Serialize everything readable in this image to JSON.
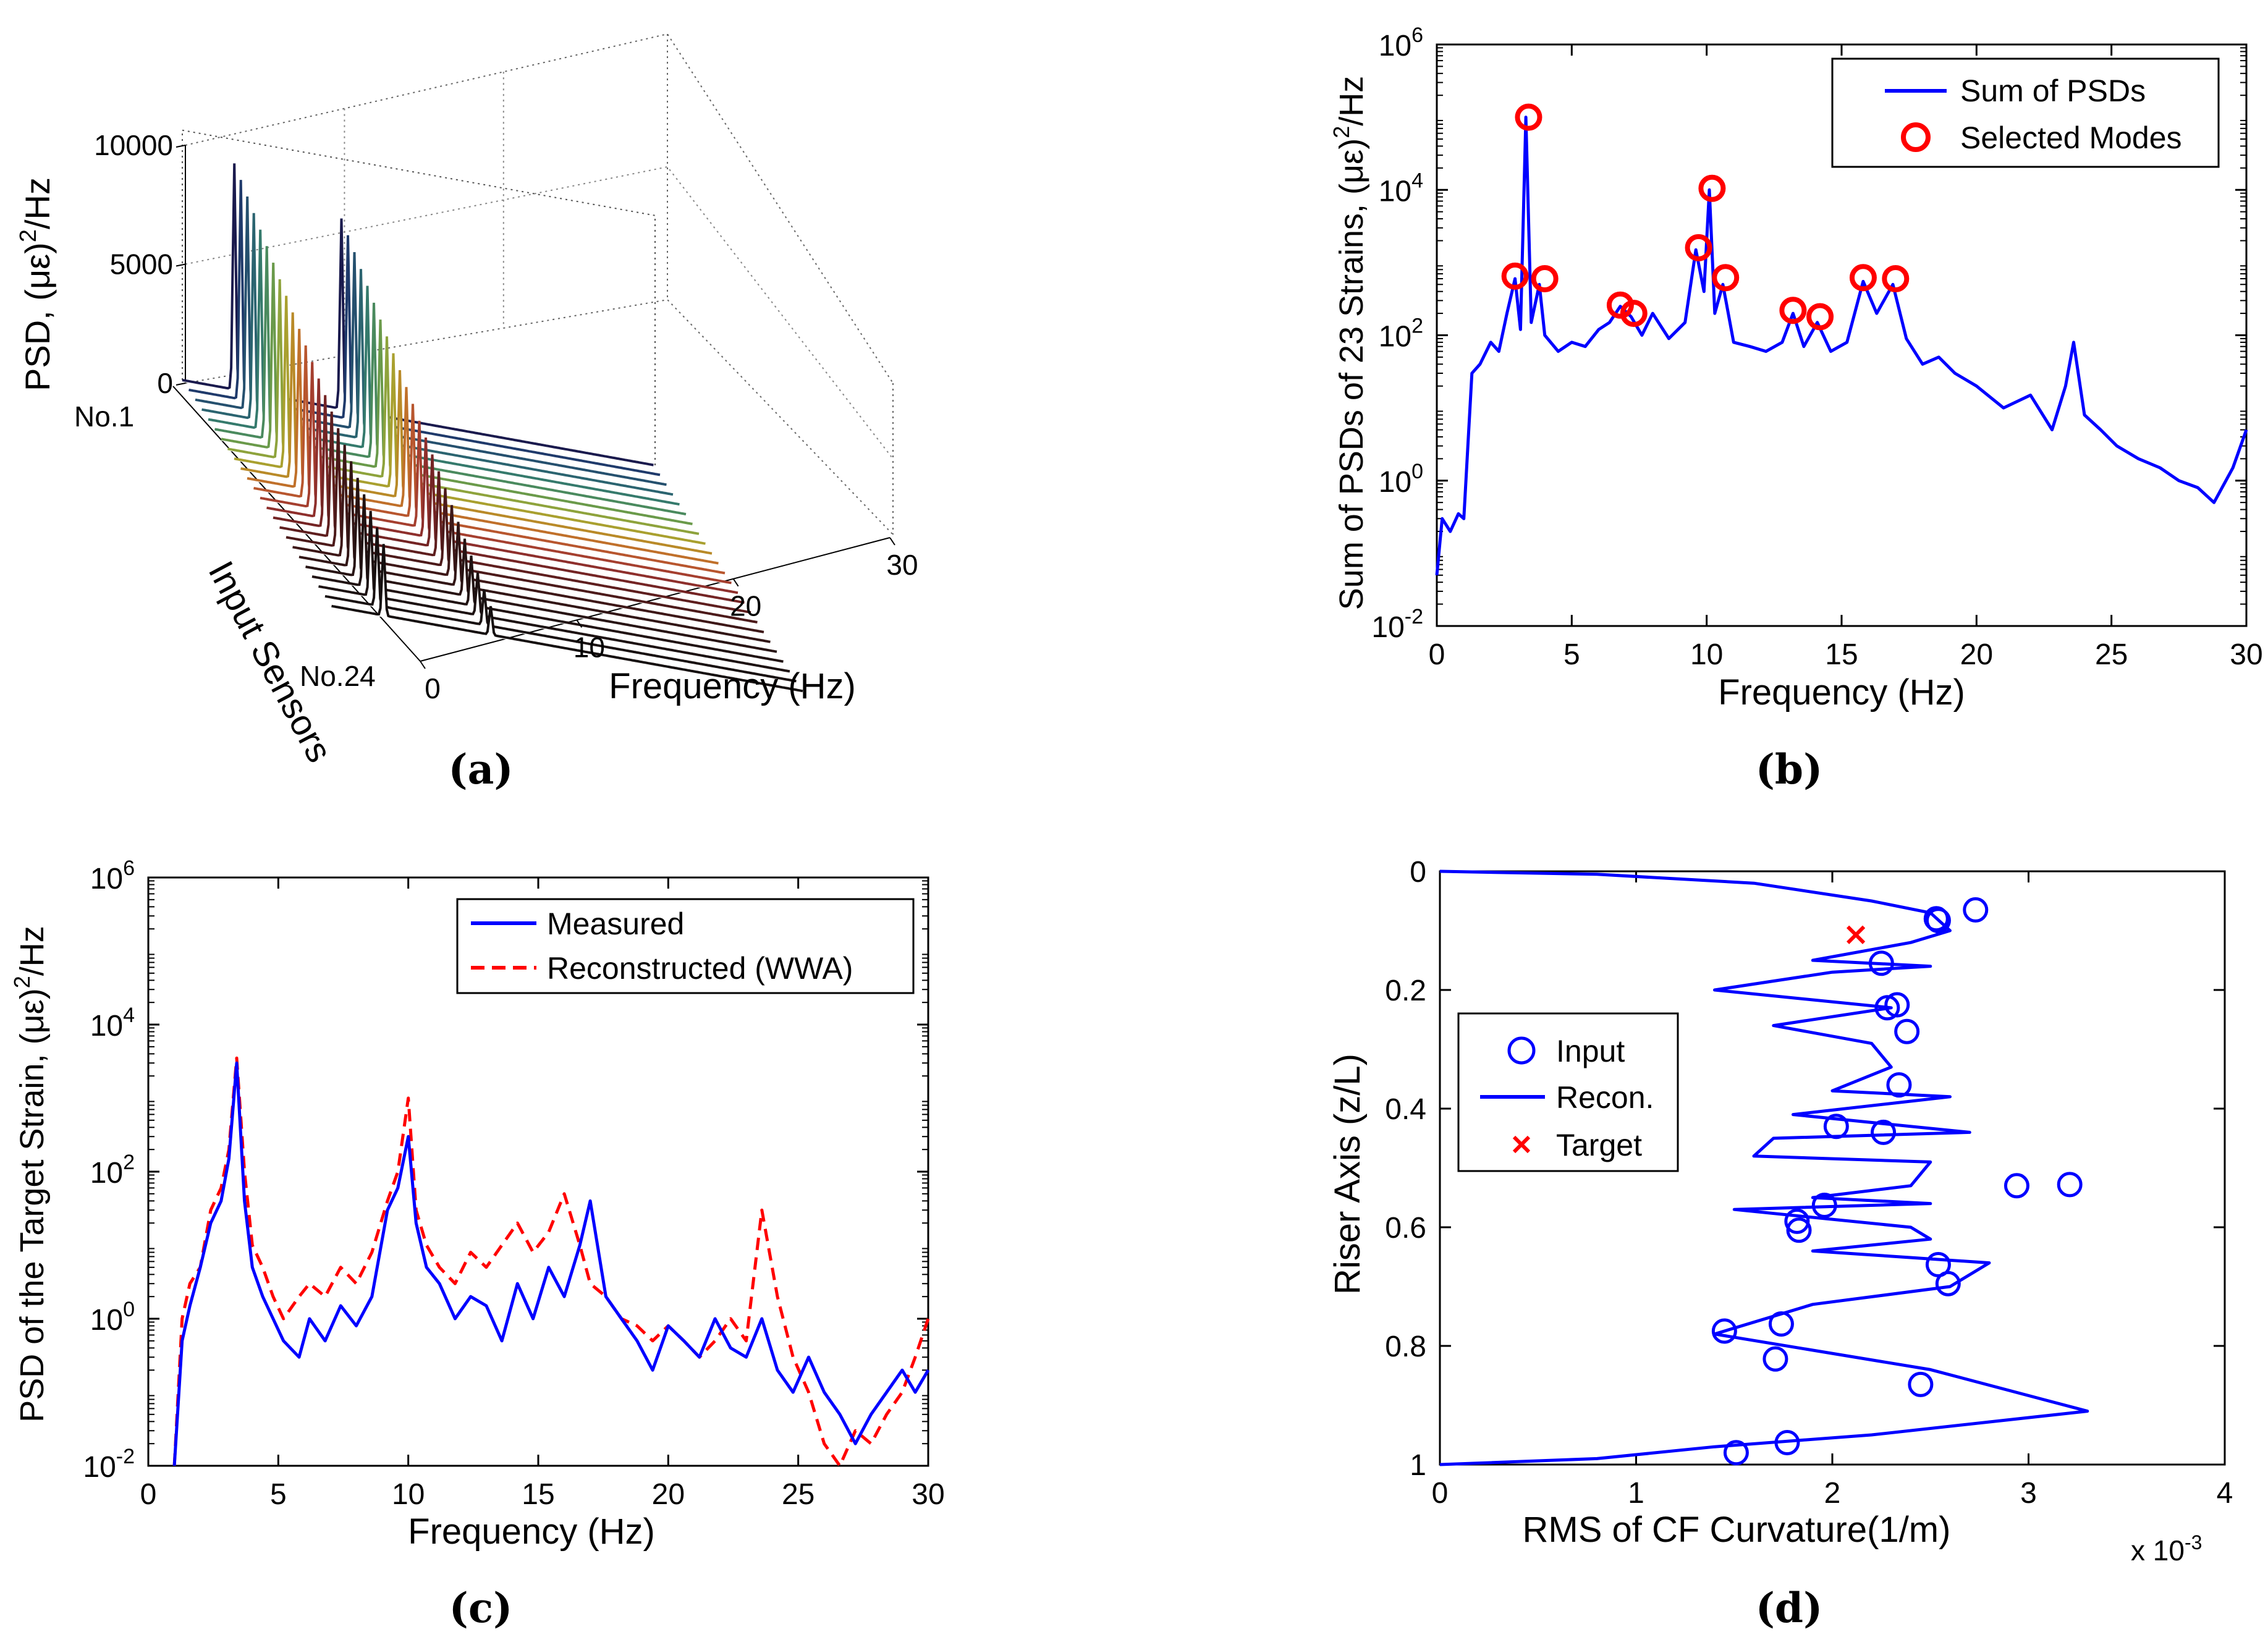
{
  "chart_data": [
    {
      "panel": "a",
      "caption": "(a)",
      "type": "area",
      "title": "",
      "xlabel": "Frequency (Hz)",
      "ylabel": "Input Sensors",
      "zlabel": "PSD, (με)²/Hz",
      "zlabel_base": "PSD, (με)",
      "zlabel_exp": "2",
      "zlabel_tail": "/Hz",
      "xlim": [
        0,
        30
      ],
      "zlim": [
        0,
        10000
      ],
      "x_ticks": [
        "0",
        "10",
        "20",
        "30"
      ],
      "z_ticks": [
        "0",
        "5000",
        "10000"
      ],
      "sensor_labels": [
        "No.1",
        "No.24"
      ],
      "n_sensors": 24,
      "peak_freqs_hz": [
        3.3,
        10.1
      ],
      "peak_heights_first": [
        9500,
        8000
      ],
      "peak_heights_last": [
        3000,
        1200
      ]
    },
    {
      "panel": "b",
      "caption": "(b)",
      "type": "line",
      "xlabel": "Frequency (Hz)",
      "ylabel": "Sum of PSDs of 23 Strains, (με)²/Hz",
      "ylabel_base": "Sum of PSDs of 23 Strains, (με)",
      "ylabel_exp": "2",
      "ylabel_tail": "/Hz",
      "yscale": "log",
      "xlim": [
        0,
        30
      ],
      "ylim": [
        0.01,
        1000000
      ],
      "x_ticks": [
        "0",
        "5",
        "10",
        "15",
        "20",
        "25",
        "30"
      ],
      "y_ticks": [
        {
          "base": "10",
          "exp": "-2"
        },
        {
          "base": "10",
          "exp": "0"
        },
        {
          "base": "10",
          "exp": "2"
        },
        {
          "base": "10",
          "exp": "4"
        },
        {
          "base": "10",
          "exp": "6"
        }
      ],
      "legend": [
        "Sum of PSDs",
        "Selected Modes"
      ],
      "legend_position": "top-right",
      "series": [
        {
          "name": "Sum of PSDs",
          "color": "#0000ff",
          "x": [
            0,
            0.2,
            0.5,
            0.8,
            1.0,
            1.3,
            1.6,
            2.0,
            2.3,
            2.6,
            2.9,
            3.1,
            3.3,
            3.5,
            3.8,
            4.0,
            4.5,
            5.0,
            5.5,
            6.0,
            6.4,
            6.8,
            7.2,
            7.6,
            8.0,
            8.6,
            9.2,
            9.6,
            9.9,
            10.1,
            10.3,
            10.6,
            11.0,
            11.6,
            12.2,
            12.8,
            13.2,
            13.6,
            14.1,
            14.6,
            15.2,
            15.8,
            16.3,
            16.9,
            17.4,
            18.0,
            18.6,
            19.2,
            20.0,
            21.0,
            22.0,
            22.8,
            23.3,
            23.6,
            24.0,
            24.6,
            25.2,
            26.0,
            26.8,
            27.5,
            28.2,
            28.8,
            29.5,
            30.0
          ],
          "values": [
            0.05,
            0.3,
            0.2,
            0.35,
            0.3,
            30,
            40,
            80,
            60,
            200,
            600,
            120,
            100000,
            150,
            500,
            100,
            60,
            80,
            70,
            120,
            150,
            250,
            180,
            100,
            200,
            90,
            150,
            1500,
            400,
            10000,
            200,
            500,
            80,
            70,
            60,
            80,
            200,
            70,
            150,
            60,
            80,
            550,
            200,
            500,
            90,
            40,
            50,
            30,
            20,
            10,
            15,
            5,
            20,
            80,
            8,
            5,
            3,
            2,
            1.5,
            1,
            0.8,
            0.5,
            1.5,
            5
          ]
        },
        {
          "name": "Selected Modes",
          "color": "#ff0000",
          "x": [
            2.9,
            3.4,
            4.0,
            6.8,
            7.3,
            9.7,
            10.2,
            10.7,
            13.2,
            14.2,
            15.8,
            17.0
          ],
          "values": [
            650,
            100000,
            600,
            260,
            200,
            1600,
            10500,
            620,
            220,
            180,
            620,
            600
          ]
        }
      ]
    },
    {
      "panel": "c",
      "caption": "(c)",
      "type": "line",
      "xlabel": "Frequency (Hz)",
      "ylabel": "PSD of the Target Strain, (με)²/Hz",
      "ylabel_base": "PSD of the Target Strain, (με)",
      "ylabel_exp": "2",
      "ylabel_tail": "/Hz",
      "yscale": "log",
      "xlim": [
        0,
        30
      ],
      "ylim": [
        0.01,
        1000000
      ],
      "x_ticks": [
        "0",
        "5",
        "10",
        "15",
        "20",
        "25",
        "30"
      ],
      "y_ticks": [
        {
          "base": "10",
          "exp": "-2"
        },
        {
          "base": "10",
          "exp": "0"
        },
        {
          "base": "10",
          "exp": "2"
        },
        {
          "base": "10",
          "exp": "4"
        },
        {
          "base": "10",
          "exp": "6"
        }
      ],
      "legend": [
        "Measured",
        "Reconstructed (WWA)"
      ],
      "legend_position": "top-right",
      "series": [
        {
          "name": "Measured",
          "color": "#0000ff",
          "style": "solid",
          "x": [
            1.0,
            1.3,
            1.6,
            2.0,
            2.4,
            2.8,
            3.1,
            3.4,
            3.7,
            4.0,
            4.4,
            4.8,
            5.2,
            5.8,
            6.2,
            6.8,
            7.4,
            8.0,
            8.6,
            9.2,
            9.6,
            10.0,
            10.3,
            10.7,
            11.2,
            11.8,
            12.4,
            13.0,
            13.6,
            14.2,
            14.8,
            15.4,
            16.0,
            16.6,
            17.0,
            17.6,
            18.2,
            18.8,
            19.4,
            20.0,
            20.6,
            21.2,
            21.8,
            22.4,
            23.0,
            23.6,
            24.2,
            24.8,
            25.4,
            26.0,
            26.6,
            27.2,
            27.8,
            28.4,
            29.0,
            29.5,
            30.0
          ],
          "values": [
            0.01,
            0.5,
            1.5,
            5,
            20,
            40,
            150,
            3000,
            40,
            5,
            2,
            1,
            0.5,
            0.3,
            1,
            0.5,
            1.5,
            0.8,
            2,
            30,
            60,
            300,
            20,
            5,
            3,
            1,
            2,
            1.5,
            0.5,
            3,
            1,
            5,
            2,
            10,
            40,
            2,
            1,
            0.5,
            0.2,
            0.8,
            0.5,
            0.3,
            1,
            0.4,
            0.3,
            1,
            0.2,
            0.1,
            0.3,
            0.1,
            0.05,
            0.02,
            0.05,
            0.1,
            0.2,
            0.1,
            0.2
          ]
        },
        {
          "name": "Reconstructed (WWA)",
          "color": "#ff0000",
          "style": "dashed",
          "x": [
            1.0,
            1.3,
            1.6,
            2.0,
            2.4,
            2.8,
            3.1,
            3.4,
            3.7,
            4.0,
            4.4,
            4.8,
            5.2,
            5.8,
            6.2,
            6.8,
            7.4,
            8.0,
            8.6,
            9.2,
            9.6,
            10.0,
            10.3,
            10.7,
            11.2,
            11.8,
            12.4,
            13.0,
            13.6,
            14.2,
            14.8,
            15.4,
            16.0,
            16.6,
            17.0,
            17.6,
            18.2,
            18.8,
            19.4,
            20.0,
            20.6,
            21.2,
            21.8,
            22.4,
            23.0,
            23.6,
            24.2,
            24.8,
            25.4,
            26.0,
            26.6,
            27.2,
            27.8,
            28.4,
            29.0,
            29.5,
            30.0
          ],
          "values": [
            0.01,
            1,
            3,
            5,
            30,
            60,
            200,
            3500,
            100,
            10,
            5,
            2,
            1,
            2,
            3,
            2,
            5,
            3,
            8,
            40,
            100,
            1000,
            30,
            10,
            5,
            3,
            8,
            5,
            10,
            20,
            8,
            15,
            50,
            10,
            3,
            2,
            1,
            0.8,
            0.5,
            0.8,
            0.5,
            0.3,
            0.5,
            1,
            0.5,
            30,
            2,
            0.3,
            0.1,
            0.02,
            0.01,
            0.03,
            0.02,
            0.05,
            0.1,
            0.3,
            1
          ]
        }
      ]
    },
    {
      "panel": "d",
      "caption": "(d)",
      "type": "scatter",
      "xlabel": "RMS of CF Curvature(1/m)",
      "ylabel": "Riser Axis (z/L)",
      "x_exponent_label": "x 10",
      "x_exponent_power": "-3",
      "xlim": [
        0,
        4
      ],
      "ylim": [
        0,
        1
      ],
      "y_reversed": true,
      "x_ticks": [
        "0",
        "1",
        "2",
        "3",
        "4"
      ],
      "y_ticks": [
        "0",
        "0.2",
        "0.4",
        "0.6",
        "0.8",
        "1"
      ],
      "legend": [
        "Input",
        "Recon.",
        "Target"
      ],
      "legend_position": "center-left",
      "series": [
        {
          "name": "Input",
          "color": "#0000ff",
          "marker": "circle",
          "x": [
            2.73,
            2.54,
            2.53,
            2.25,
            2.33,
            2.28,
            2.38,
            2.34,
            2.02,
            2.26,
            2.94,
            3.21,
            1.96,
            1.82,
            1.83,
            2.54,
            2.59,
            1.74,
            1.45,
            1.71,
            2.45,
            1.77,
            1.51
          ],
          "y": [
            0.065,
            0.083,
            0.08,
            0.155,
            0.225,
            0.23,
            0.27,
            0.36,
            0.43,
            0.44,
            0.53,
            0.528,
            0.563,
            0.59,
            0.605,
            0.663,
            0.695,
            0.763,
            0.775,
            0.822,
            0.865,
            0.963,
            0.98
          ]
        },
        {
          "name": "Recon.",
          "color": "#0000ff",
          "marker": "line",
          "x": [
            0,
            0.8,
            1.6,
            2.2,
            2.5,
            2.6,
            2.4,
            1.9,
            2.5,
            2.0,
            1.4,
            2.3,
            1.7,
            2.2,
            2.3,
            2.0,
            2.6,
            1.8,
            2.7,
            1.7,
            1.6,
            2.5,
            2.4,
            1.9,
            2.5,
            1.5,
            2.4,
            2.5,
            1.9,
            2.8,
            2.6,
            1.9,
            1.4,
            2.5,
            3.3,
            2.2,
            1.4,
            0.8,
            0
          ],
          "y": [
            0,
            0.005,
            0.02,
            0.05,
            0.07,
            0.1,
            0.12,
            0.15,
            0.16,
            0.17,
            0.2,
            0.23,
            0.26,
            0.29,
            0.33,
            0.37,
            0.38,
            0.41,
            0.44,
            0.45,
            0.48,
            0.49,
            0.53,
            0.55,
            0.56,
            0.57,
            0.6,
            0.62,
            0.64,
            0.66,
            0.7,
            0.73,
            0.78,
            0.84,
            0.91,
            0.95,
            0.97,
            0.99,
            1.0
          ]
        },
        {
          "name": "Target",
          "color": "#ff0000",
          "marker": "x",
          "x": [
            2.12
          ],
          "y": [
            0.107
          ]
        }
      ]
    }
  ]
}
